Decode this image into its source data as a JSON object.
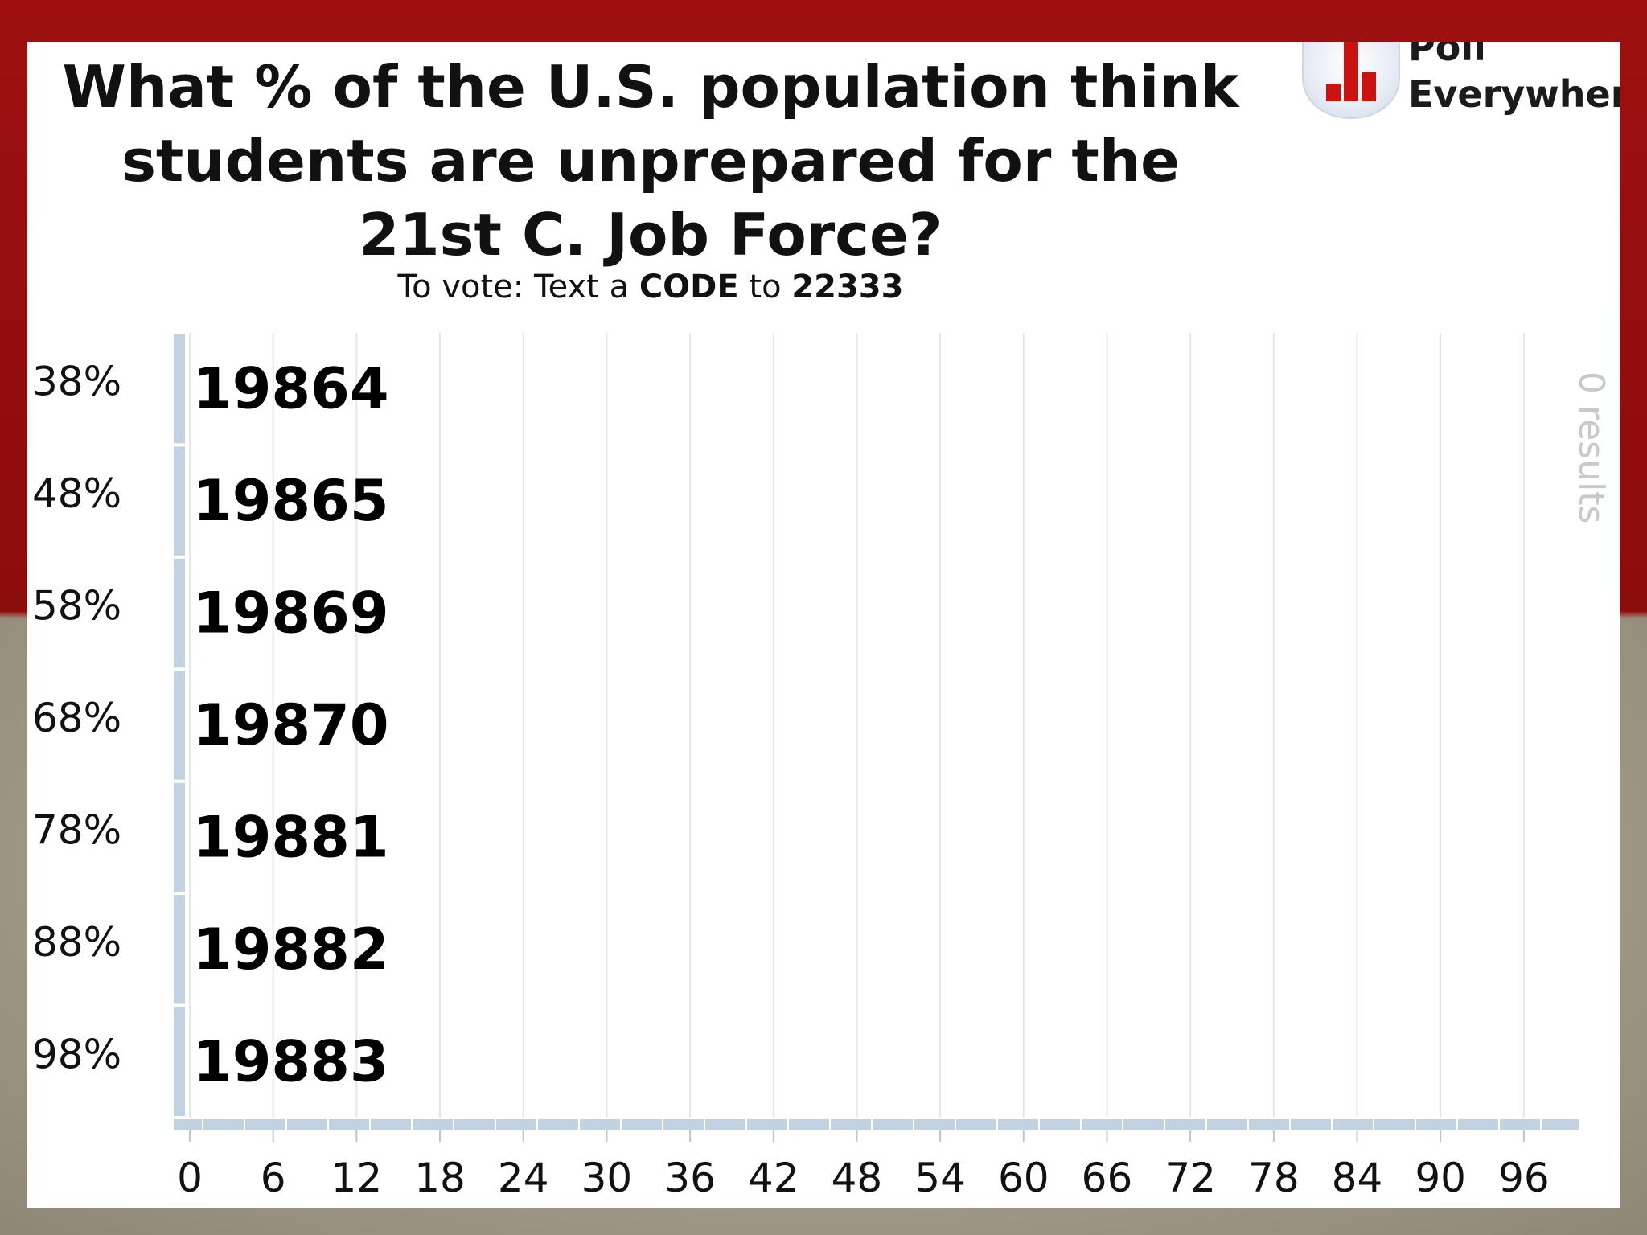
{
  "poll": {
    "title_lines": [
      "What % of the U.S. population think",
      "students are unprepared for the",
      "21st C. Job Force?"
    ],
    "vote_prefix": "To vote: Text a",
    "vote_code_word": "CODE",
    "vote_to": "to",
    "vote_number": "22333",
    "results_label": "0 results"
  },
  "logo": {
    "line1": "Poll",
    "line2": "Everywhere",
    "accent_color": "#cc1111"
  },
  "colors": {
    "slide_red": "#9e1010",
    "slide_tan": "#a7a08f",
    "axis_blue": "#c3d2e0",
    "grid": "#e6e6e6"
  },
  "chart_data": {
    "type": "bar",
    "orientation": "horizontal",
    "categories": [
      "38%",
      "48%",
      "58%",
      "68%",
      "78%",
      "88%",
      "98%"
    ],
    "codes": [
      "19864",
      "19865",
      "19869",
      "19870",
      "19881",
      "19882",
      "19883"
    ],
    "values": [
      0,
      0,
      0,
      0,
      0,
      0,
      0
    ],
    "xticks": [
      0,
      6,
      12,
      18,
      24,
      30,
      36,
      42,
      48,
      54,
      60,
      66,
      72,
      78,
      84,
      90,
      96
    ],
    "xlim": [
      0,
      100
    ],
    "grid": true,
    "title": "What % of the U.S. population think students are unprepared for the 21st C. Job Force?"
  }
}
